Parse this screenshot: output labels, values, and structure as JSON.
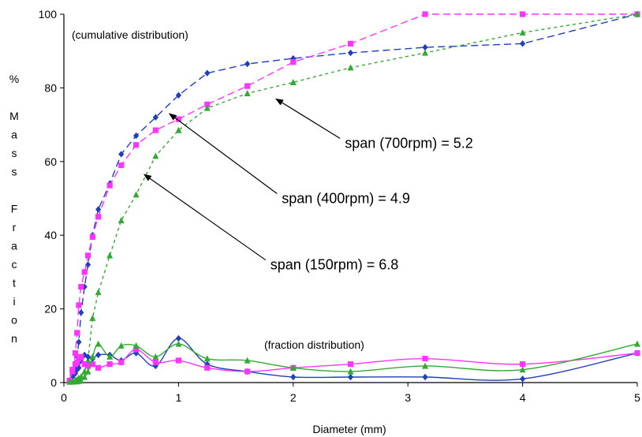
{
  "chart_data": {
    "type": "line",
    "xlabel": "Diameter (mm)",
    "ylabel": "% Mass Fraction",
    "xlim": [
      0,
      5
    ],
    "ylim": [
      0,
      100
    ],
    "xticks": [
      0,
      1,
      2,
      3,
      4,
      5
    ],
    "yticks": [
      0,
      20,
      40,
      60,
      80,
      100
    ],
    "grid": false,
    "annotations": {
      "cumulative": "(cumulative distribution)",
      "fraction": "(fraction distribution)"
    },
    "callouts": [
      {
        "text": "span (700rpm) = 5.2",
        "target": [
          1.85,
          77
        ],
        "label_at": [
          2.45,
          65
        ]
      },
      {
        "text": "span (400rpm) = 4.9",
        "target": [
          0.92,
          73
        ],
        "label_at": [
          1.9,
          50
        ]
      },
      {
        "text": "span (150rpm) = 6.8",
        "target": [
          0.7,
          56.5
        ],
        "label_at": [
          1.8,
          32
        ]
      }
    ],
    "series": [
      {
        "group": "cumulative",
        "color": "#1f3fbf",
        "marker": "diamond",
        "dash": "9,5",
        "x": [
          0.05,
          0.075,
          0.1,
          0.115,
          0.13,
          0.15,
          0.18,
          0.21,
          0.25,
          0.3,
          0.4,
          0.5,
          0.63,
          0.8,
          1.0,
          1.25,
          1.6,
          2.0,
          2.5,
          3.15,
          4.0,
          5.0
        ],
        "y": [
          0.5,
          2,
          4,
          7,
          11,
          19,
          26,
          32,
          40,
          47,
          54,
          62,
          67,
          72,
          78,
          84,
          86.5,
          88,
          89.5,
          91,
          92,
          100
        ]
      },
      {
        "group": "cumulative",
        "color": "#ff33ff",
        "marker": "square",
        "dash": "9,5",
        "x": [
          0.05,
          0.075,
          0.1,
          0.115,
          0.13,
          0.15,
          0.18,
          0.21,
          0.25,
          0.3,
          0.4,
          0.5,
          0.63,
          0.8,
          1.0,
          1.25,
          1.6,
          2.0,
          2.5,
          3.15,
          4.0,
          5.0
        ],
        "y": [
          0.5,
          3.5,
          8,
          13.5,
          21,
          26,
          30,
          34.5,
          39.5,
          45,
          53.5,
          59,
          64.5,
          68.5,
          71.5,
          75.5,
          80.5,
          87,
          92,
          100,
          100,
          100
        ]
      },
      {
        "group": "cumulative",
        "color": "#33aa33",
        "marker": "triangle",
        "dash": "4,4",
        "x": [
          0.05,
          0.075,
          0.1,
          0.115,
          0.13,
          0.15,
          0.18,
          0.21,
          0.25,
          0.3,
          0.4,
          0.5,
          0.63,
          0.8,
          1.0,
          1.25,
          1.6,
          2.0,
          2.5,
          3.15,
          4.0,
          5.0
        ],
        "y": [
          0.2,
          0.4,
          0.6,
          0.8,
          1.2,
          1.6,
          3,
          6,
          17.5,
          24.5,
          34.5,
          44,
          51,
          61.5,
          68.5,
          74.5,
          78.5,
          81.5,
          85.5,
          89.5,
          95,
          100
        ]
      },
      {
        "group": "fraction",
        "color": "#1f3fbf",
        "marker": "diamond",
        "dash": "",
        "x": [
          0.05,
          0.075,
          0.1,
          0.115,
          0.13,
          0.15,
          0.18,
          0.21,
          0.25,
          0.3,
          0.4,
          0.5,
          0.63,
          0.8,
          1.0,
          1.25,
          1.6,
          2.0,
          2.5,
          3.15,
          4.0,
          5.0
        ],
        "y": [
          0.5,
          1.5,
          2.5,
          3.5,
          4,
          6,
          7.5,
          7,
          6.5,
          7.5,
          7.5,
          6,
          8,
          4.5,
          12,
          5,
          3,
          1.5,
          1.5,
          1.5,
          1,
          8
        ]
      },
      {
        "group": "fraction",
        "color": "#ff33ff",
        "marker": "square",
        "dash": "",
        "x": [
          0.05,
          0.075,
          0.1,
          0.115,
          0.13,
          0.15,
          0.18,
          0.21,
          0.25,
          0.3,
          0.4,
          0.5,
          0.63,
          0.8,
          1.0,
          1.25,
          1.6,
          2.0,
          2.5,
          3.15,
          4.0,
          5.0
        ],
        "y": [
          0.5,
          3,
          5,
          5.5,
          6.5,
          7,
          5,
          4.5,
          5,
          4,
          5,
          5.5,
          9,
          5.5,
          6,
          4,
          3,
          4,
          5,
          6.5,
          5,
          8
        ]
      },
      {
        "group": "fraction",
        "color": "#33aa33",
        "marker": "triangle",
        "dash": "",
        "x": [
          0.05,
          0.075,
          0.1,
          0.115,
          0.13,
          0.15,
          0.18,
          0.21,
          0.25,
          0.3,
          0.4,
          0.5,
          0.63,
          0.8,
          1.0,
          1.25,
          1.6,
          2.0,
          2.5,
          3.15,
          4.0,
          5.0
        ],
        "y": [
          0.2,
          0.2,
          0.3,
          0.3,
          0.4,
          0.5,
          1.5,
          3,
          7,
          10.5,
          7,
          10,
          10,
          7,
          10.5,
          6.5,
          6,
          4,
          3,
          4.5,
          3.5,
          10.5
        ]
      }
    ]
  }
}
